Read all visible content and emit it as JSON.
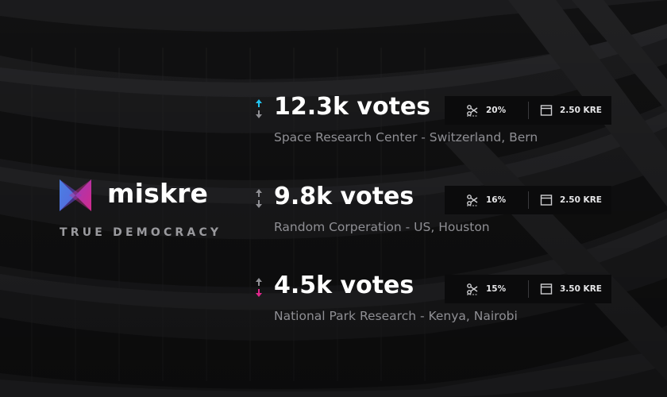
{
  "brand": {
    "name": "miskre",
    "tagline": "TRUE DEMOCRACY",
    "colors": {
      "cyan": "#22c3f0",
      "violet": "#6b49d9",
      "magenta": "#e0268c"
    }
  },
  "rows": [
    {
      "votes": "12.3k votes",
      "place": "Space Research Center - Switzerland, Bern",
      "trend": "up",
      "share": "20%",
      "share_icon": "scissors-icon",
      "price": "2.50 KRE",
      "price_icon": "window-icon"
    },
    {
      "votes": "9.8k votes",
      "place": "Random Corperation - US, Houston",
      "trend": "neutral",
      "share": "16%",
      "share_icon": "scissors-icon",
      "price": "2.50 KRE",
      "price_icon": "window-icon"
    },
    {
      "votes": "4.5k votes",
      "place": "National Park Research - Kenya, Nairobi",
      "trend": "down",
      "share": "15%",
      "share_icon": "scissors-icon",
      "price": "3.50 KRE",
      "price_icon": "window-icon"
    }
  ],
  "colors": {
    "up": "#22c3f0",
    "down": "#e0268c",
    "neutral": "#8f8f94",
    "panel": "#0b0b0c"
  }
}
